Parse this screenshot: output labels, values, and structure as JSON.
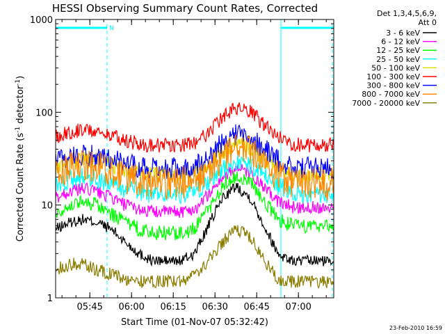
{
  "chart_data": {
    "type": "line",
    "title": "HESSI Observing Summary Count Rates, Corrected",
    "xlabel": "Start Time (01-Nov-07 05:32:42)",
    "ylabel_main": "Corrected Count Rate (s",
    "ylabel_sup1": "-1",
    "ylabel_mid": " detector",
    "ylabel_sup2": "-1",
    "ylabel_end": ")",
    "y_scale": "log",
    "ylim": [
      1,
      1000
    ],
    "y_ticks": [
      {
        "value": 1,
        "label": "1"
      },
      {
        "value": 10,
        "label": "10"
      },
      {
        "value": 100,
        "label": "100"
      },
      {
        "value": 1000,
        "label": "1000"
      }
    ],
    "xlim_minutes_after_0532_42": [
      0,
      100
    ],
    "x_ticks": [
      {
        "minutes": 12.3,
        "label": "05:45"
      },
      {
        "minutes": 27.3,
        "label": "06:00"
      },
      {
        "minutes": 42.3,
        "label": "06:15"
      },
      {
        "minutes": 57.3,
        "label": "06:30"
      },
      {
        "minutes": 72.3,
        "label": "06:45"
      },
      {
        "minutes": 87.3,
        "label": "07:00"
      }
    ],
    "legend_header": [
      "Det 1,3,4,5,6,9,",
      "Att 0"
    ],
    "legend_position": "right, outside plot",
    "series": [
      {
        "name": "3 - 6 keV",
        "color": "#000000",
        "x": [
          0,
          5,
          10,
          15,
          20,
          25,
          30,
          35,
          40,
          45,
          50,
          55,
          60,
          65,
          70,
          75,
          80,
          85,
          90,
          95,
          100
        ],
        "y": [
          5.5,
          6.5,
          7,
          6.5,
          5.5,
          4,
          3,
          2.5,
          2.5,
          2.5,
          3,
          6,
          12,
          16,
          12,
          6,
          3,
          2.5,
          2.5,
          2.5,
          2.5
        ]
      },
      {
        "name": "6 - 12 keV",
        "color": "#ff00ff",
        "x": [
          0,
          5,
          10,
          15,
          20,
          25,
          30,
          35,
          40,
          45,
          50,
          55,
          60,
          65,
          70,
          75,
          80,
          85,
          90,
          95,
          100
        ],
        "y": [
          12,
          14,
          15,
          14,
          12,
          10,
          9,
          8.5,
          8.5,
          8.5,
          9,
          13,
          20,
          25,
          22,
          15,
          11,
          9.5,
          9.5,
          9.5,
          9.5
        ]
      },
      {
        "name": "12 - 25 keV",
        "color": "#00ff00",
        "x": [
          0,
          5,
          10,
          15,
          20,
          25,
          30,
          35,
          40,
          45,
          50,
          55,
          60,
          65,
          70,
          75,
          80,
          85,
          90,
          95,
          100
        ],
        "y": [
          8,
          10,
          11,
          10,
          8,
          6.5,
          5.5,
          5,
          5,
          5,
          5.5,
          9,
          16,
          21,
          18,
          11,
          7,
          6,
          6,
          6,
          6
        ]
      },
      {
        "name": "25 - 50 keV",
        "color": "#00ffff",
        "x": [
          0,
          5,
          10,
          15,
          20,
          25,
          30,
          35,
          40,
          45,
          50,
          55,
          60,
          65,
          70,
          75,
          80,
          85,
          90,
          95,
          100
        ],
        "y": [
          16,
          19,
          20,
          19,
          17,
          15,
          14,
          13,
          13,
          13,
          14,
          17,
          24,
          29,
          27,
          21,
          16,
          14,
          13,
          13,
          13
        ]
      },
      {
        "name": "50 - 100 keV",
        "color": "#dddd00",
        "x": [
          0,
          5,
          10,
          15,
          20,
          25,
          30,
          35,
          40,
          45,
          50,
          55,
          60,
          65,
          70,
          75,
          80,
          85,
          90,
          95,
          100
        ],
        "y": [
          25,
          29,
          31,
          30,
          27,
          24,
          22,
          21,
          21,
          21,
          22,
          27,
          38,
          46,
          42,
          32,
          25,
          22,
          21,
          21,
          21
        ]
      },
      {
        "name": "100 - 300 keV",
        "color": "#ff0000",
        "x": [
          0,
          5,
          10,
          15,
          20,
          25,
          30,
          35,
          40,
          45,
          50,
          55,
          60,
          65,
          70,
          75,
          80,
          85,
          90,
          95,
          100
        ],
        "y": [
          55,
          62,
          65,
          62,
          56,
          50,
          46,
          44,
          44,
          44,
          47,
          60,
          88,
          110,
          100,
          74,
          54,
          46,
          44,
          44,
          44
        ]
      },
      {
        "name": "300 - 800 keV",
        "color": "#0000ff",
        "x": [
          0,
          5,
          10,
          15,
          20,
          25,
          30,
          35,
          40,
          45,
          50,
          55,
          60,
          65,
          70,
          75,
          80,
          85,
          90,
          95,
          100
        ],
        "y": [
          31,
          34,
          35,
          34,
          31,
          28,
          26,
          25,
          25,
          25,
          26,
          33,
          47,
          58,
          54,
          40,
          30,
          26,
          25,
          25,
          25
        ]
      },
      {
        "name": "800 - 7000 keV",
        "color": "#ff8800",
        "x": [
          0,
          5,
          10,
          15,
          20,
          25,
          30,
          35,
          40,
          45,
          50,
          55,
          60,
          65,
          70,
          75,
          80,
          85,
          90,
          95,
          100
        ],
        "y": [
          21,
          25,
          27,
          26,
          23,
          20,
          18.5,
          17.5,
          17.5,
          17.5,
          18,
          23,
          33,
          41,
          37,
          27,
          20,
          17.5,
          17,
          17,
          17
        ]
      },
      {
        "name": "7000 - 20000 keV",
        "color": "#8b7d00",
        "x": [
          0,
          5,
          10,
          15,
          20,
          25,
          30,
          35,
          40,
          45,
          50,
          55,
          60,
          65,
          70,
          75,
          80,
          85,
          90,
          95,
          100
        ],
        "y": [
          2,
          2.3,
          2.3,
          2,
          1.8,
          1.6,
          1.5,
          1.5,
          1.5,
          1.5,
          1.7,
          2.5,
          4,
          5.5,
          4.5,
          2.5,
          1.6,
          1.5,
          1.5,
          1.5,
          1.5
        ]
      }
    ],
    "flags": [
      {
        "label": "N",
        "x_start": 0,
        "x_end": 18.5
      },
      {
        "label": "",
        "x_start": 81,
        "x_end": 100
      }
    ],
    "annotation_timestamp": "23-Feb-2010 16:59",
    "grid": false,
    "colors": {
      "background": "#ffffff",
      "axes": "#000000",
      "flag": "#00ffff"
    }
  }
}
